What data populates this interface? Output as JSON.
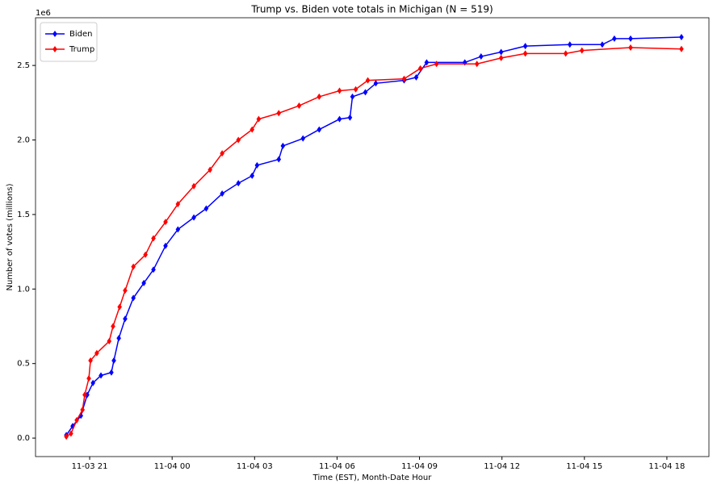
{
  "chart_data": {
    "type": "line",
    "title": "Trump vs. Biden vote totals in Michigan (N = 519)",
    "xlabel": "Time (EST), Month-Date Hour",
    "ylabel": "Number of votes (millions)",
    "y_offset_label": "1e6",
    "xlim": [
      19.03,
      43.53
    ],
    "xticks": [
      {
        "value": 21,
        "label": "11-03 21"
      },
      {
        "value": 24,
        "label": "11-04 00"
      },
      {
        "value": 27,
        "label": "11-04 03"
      },
      {
        "value": 30,
        "label": "11-04 06"
      },
      {
        "value": 33,
        "label": "11-04 09"
      },
      {
        "value": 36,
        "label": "11-04 12"
      },
      {
        "value": 39,
        "label": "11-04 15"
      },
      {
        "value": 42,
        "label": "11-04 18"
      }
    ],
    "ylim": [
      -0.124,
      2.82
    ],
    "yticks": [
      {
        "value": 0,
        "label": "0.0"
      },
      0.5,
      {
        "value": 1,
        "label": "1.0"
      },
      1.5,
      {
        "value": 2,
        "label": "2.0"
      },
      2.5
    ],
    "legend": "upper left",
    "series": [
      {
        "name": "Biden",
        "color": "#0000ff",
        "x": [
          20.15,
          20.38,
          20.68,
          20.91,
          21.12,
          21.41,
          21.79,
          21.88,
          22.06,
          22.29,
          22.59,
          22.97,
          23.32,
          23.76,
          24.21,
          24.79,
          25.24,
          25.82,
          26.41,
          26.91,
          27.09,
          27.88,
          28.03,
          28.76,
          29.35,
          30.09,
          30.47,
          30.56,
          31.03,
          31.41,
          32.44,
          32.88,
          33.26,
          34.65,
          35.24,
          35.97,
          36.85,
          38.47,
          39.65,
          40.09,
          40.68,
          42.53
        ],
        "values": [
          0.02,
          0.08,
          0.15,
          0.29,
          0.37,
          0.42,
          0.44,
          0.52,
          0.67,
          0.8,
          0.94,
          1.04,
          1.13,
          1.29,
          1.4,
          1.48,
          1.54,
          1.64,
          1.71,
          1.76,
          1.83,
          1.87,
          1.96,
          2.01,
          2.07,
          2.14,
          2.15,
          2.29,
          2.32,
          2.38,
          2.4,
          2.42,
          2.52,
          2.52,
          2.56,
          2.59,
          2.63,
          2.64,
          2.64,
          2.68,
          2.68,
          2.69
        ]
      },
      {
        "name": "Trump",
        "color": "#ff0000",
        "x": [
          20.15,
          20.32,
          20.53,
          20.74,
          20.82,
          20.97,
          21.03,
          21.26,
          21.71,
          21.85,
          22.09,
          22.29,
          22.59,
          23.03,
          23.32,
          23.76,
          24.21,
          24.79,
          25.38,
          25.82,
          26.41,
          26.91,
          27.15,
          27.88,
          28.62,
          29.35,
          30.09,
          30.68,
          31.12,
          32.44,
          33.03,
          33.62,
          35.09,
          35.97,
          36.85,
          38.32,
          38.91,
          40.68,
          42.53
        ],
        "values": [
          0.01,
          0.03,
          0.12,
          0.19,
          0.29,
          0.4,
          0.52,
          0.57,
          0.65,
          0.75,
          0.88,
          0.99,
          1.15,
          1.23,
          1.34,
          1.45,
          1.57,
          1.69,
          1.8,
          1.91,
          2.0,
          2.07,
          2.14,
          2.18,
          2.23,
          2.29,
          2.33,
          2.34,
          2.4,
          2.41,
          2.48,
          2.51,
          2.51,
          2.55,
          2.58,
          2.58,
          2.6,
          2.62,
          2.61
        ]
      }
    ]
  }
}
